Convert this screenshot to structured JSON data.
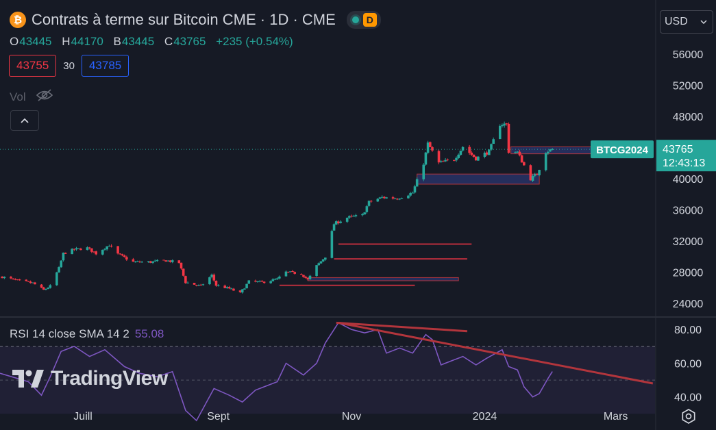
{
  "header": {
    "title": "Contrats à terme sur Bitcoin CME · 1D · CME",
    "badge": "D",
    "icon": "bitcoin-icon",
    "currency": "USD"
  },
  "ohlc": {
    "o_label": "O",
    "o": "43445",
    "h_label": "H",
    "h": "44170",
    "b_label": "B",
    "b": "43445",
    "c_label": "C",
    "c": "43765",
    "change": "+235 (+0.54%)"
  },
  "quote": {
    "bid": "43755",
    "spread": "30",
    "ask": "43785"
  },
  "volume": {
    "label": "Vol",
    "icon": "eye-off-icon"
  },
  "rsi_legend": {
    "text": "RSI 14 close SMA 14 2",
    "value": "55.08"
  },
  "watermark": "TradingView",
  "colors": {
    "background": "#161a25",
    "up": "#26a69a",
    "down": "#f23645",
    "rsi": "#7e57c2",
    "trendline": "#b2353c",
    "zone": "#3848a0"
  },
  "chart_data": [
    {
      "type": "candlestick",
      "symbol_label": "BTCG2024",
      "last_price": "43765",
      "countdown": "12:43:13",
      "y_ticks": [
        "56000",
        "52000",
        "48000",
        "44000",
        "40000",
        "36000",
        "32000",
        "28000",
        "24000"
      ],
      "x_labels": [
        "Juill",
        "Sept",
        "Nov",
        "2024",
        "Mars"
      ],
      "x_label_dates": [
        "2023-07-01",
        "2023-09-01",
        "2023-11-01",
        "2024-01-01",
        "2024-03-01"
      ],
      "ylim": [
        22500,
        57500
      ],
      "xlim": [
        "2023-05-24",
        "2024-03-19"
      ],
      "grid": false,
      "series": [
        {
          "date": "2023-05-25",
          "value": 27400
        },
        {
          "date": "2023-06-01",
          "value": 26900
        },
        {
          "date": "2023-06-08",
          "value": 26600
        },
        {
          "date": "2023-06-13",
          "value": 25700
        },
        {
          "date": "2023-06-16",
          "value": 26200
        },
        {
          "date": "2023-06-20",
          "value": 28500
        },
        {
          "date": "2023-06-22",
          "value": 30400
        },
        {
          "date": "2023-06-27",
          "value": 30900
        },
        {
          "date": "2023-07-03",
          "value": 31100
        },
        {
          "date": "2023-07-07",
          "value": 30400
        },
        {
          "date": "2023-07-13",
          "value": 31500
        },
        {
          "date": "2023-07-17",
          "value": 30300
        },
        {
          "date": "2023-07-24",
          "value": 29300
        },
        {
          "date": "2023-08-01",
          "value": 29300
        },
        {
          "date": "2023-08-08",
          "value": 29500
        },
        {
          "date": "2023-08-14",
          "value": 29200
        },
        {
          "date": "2023-08-17",
          "value": 26700
        },
        {
          "date": "2023-08-24",
          "value": 26200
        },
        {
          "date": "2023-08-29",
          "value": 27600
        },
        {
          "date": "2023-08-31",
          "value": 26300
        },
        {
          "date": "2023-09-06",
          "value": 25900
        },
        {
          "date": "2023-09-11",
          "value": 25300
        },
        {
          "date": "2023-09-15",
          "value": 26800
        },
        {
          "date": "2023-09-21",
          "value": 26700
        },
        {
          "date": "2023-09-28",
          "value": 27100
        },
        {
          "date": "2023-10-02",
          "value": 28000
        },
        {
          "date": "2023-10-09",
          "value": 27800
        },
        {
          "date": "2023-10-12",
          "value": 27000
        },
        {
          "date": "2023-10-16",
          "value": 28800
        },
        {
          "date": "2023-10-20",
          "value": 30000
        },
        {
          "date": "2023-10-24",
          "value": 34200
        },
        {
          "date": "2023-10-30",
          "value": 35000
        },
        {
          "date": "2023-11-06",
          "value": 35300
        },
        {
          "date": "2023-11-09",
          "value": 37000
        },
        {
          "date": "2023-11-15",
          "value": 37600
        },
        {
          "date": "2023-11-22",
          "value": 37500
        },
        {
          "date": "2023-11-29",
          "value": 38200
        },
        {
          "date": "2023-12-04",
          "value": 42000
        },
        {
          "date": "2023-12-06",
          "value": 44500
        },
        {
          "date": "2023-12-11",
          "value": 42000
        },
        {
          "date": "2023-12-18",
          "value": 42500
        },
        {
          "date": "2023-12-22",
          "value": 44100
        },
        {
          "date": "2023-12-28",
          "value": 42600
        },
        {
          "date": "2024-01-03",
          "value": 43500
        },
        {
          "date": "2024-01-08",
          "value": 47000
        },
        {
          "date": "2024-01-11",
          "value": 47000
        },
        {
          "date": "2024-01-12",
          "value": 43500
        },
        {
          "date": "2024-01-16",
          "value": 43400
        },
        {
          "date": "2024-01-22",
          "value": 40000
        },
        {
          "date": "2024-01-25",
          "value": 40600
        },
        {
          "date": "2024-01-29",
          "value": 43500
        },
        {
          "date": "2024-02-01",
          "value": 43765
        }
      ],
      "zones": [
        {
          "date_from": "2024-01-13",
          "date_to": "2024-03-17",
          "y_from": 43200,
          "y_to": 44100
        },
        {
          "date_from": "2023-12-01",
          "date_to": "2024-01-26",
          "y_from": 39300,
          "y_to": 40600
        },
        {
          "date_from": "2023-10-12",
          "date_to": "2023-12-20",
          "y_from": 26900,
          "y_to": 27300
        }
      ],
      "levels": [
        {
          "date_from": "2023-10-26",
          "date_to": "2023-12-26",
          "value": 31600
        },
        {
          "date_from": "2023-10-24",
          "date_to": "2023-12-24",
          "value": 29700
        },
        {
          "date_from": "2023-09-29",
          "date_to": "2023-11-30",
          "value": 26300
        }
      ]
    },
    {
      "type": "line",
      "name": "RSI",
      "y_ticks": [
        "80.00",
        "60.00",
        "40.00"
      ],
      "ylim": [
        35,
        87
      ],
      "bands": [
        70,
        50,
        30
      ],
      "series": [
        {
          "date": "2023-05-24",
          "value": 54
        },
        {
          "date": "2023-06-06",
          "value": 49
        },
        {
          "date": "2023-06-12",
          "value": 41
        },
        {
          "date": "2023-06-16",
          "value": 52
        },
        {
          "date": "2023-06-21",
          "value": 67
        },
        {
          "date": "2023-06-27",
          "value": 70
        },
        {
          "date": "2023-07-04",
          "value": 64
        },
        {
          "date": "2023-07-11",
          "value": 68
        },
        {
          "date": "2023-07-20",
          "value": 58
        },
        {
          "date": "2023-07-27",
          "value": 54
        },
        {
          "date": "2023-08-04",
          "value": 52
        },
        {
          "date": "2023-08-11",
          "value": 55
        },
        {
          "date": "2023-08-17",
          "value": 32
        },
        {
          "date": "2023-08-22",
          "value": 26
        },
        {
          "date": "2023-08-30",
          "value": 45
        },
        {
          "date": "2023-09-06",
          "value": 41
        },
        {
          "date": "2023-09-12",
          "value": 37
        },
        {
          "date": "2023-09-18",
          "value": 44
        },
        {
          "date": "2023-09-28",
          "value": 49
        },
        {
          "date": "2023-10-02",
          "value": 60
        },
        {
          "date": "2023-10-10",
          "value": 53
        },
        {
          "date": "2023-10-16",
          "value": 60
        },
        {
          "date": "2023-10-20",
          "value": 72
        },
        {
          "date": "2023-10-26",
          "value": 84
        },
        {
          "date": "2023-11-01",
          "value": 80
        },
        {
          "date": "2023-11-07",
          "value": 78
        },
        {
          "date": "2023-11-13",
          "value": 80
        },
        {
          "date": "2023-11-17",
          "value": 66
        },
        {
          "date": "2023-11-23",
          "value": 69
        },
        {
          "date": "2023-11-29",
          "value": 66
        },
        {
          "date": "2023-12-05",
          "value": 77
        },
        {
          "date": "2023-12-08",
          "value": 74
        },
        {
          "date": "2023-12-12",
          "value": 59
        },
        {
          "date": "2023-12-18",
          "value": 62
        },
        {
          "date": "2023-12-22",
          "value": 64
        },
        {
          "date": "2023-12-28",
          "value": 59
        },
        {
          "date": "2024-01-02",
          "value": 63
        },
        {
          "date": "2024-01-09",
          "value": 68
        },
        {
          "date": "2024-01-12",
          "value": 58
        },
        {
          "date": "2024-01-16",
          "value": 56
        },
        {
          "date": "2024-01-19",
          "value": 46
        },
        {
          "date": "2024-01-23",
          "value": 40
        },
        {
          "date": "2024-01-26",
          "value": 42
        },
        {
          "date": "2024-01-30",
          "value": 51
        },
        {
          "date": "2024-02-01",
          "value": 55.08
        }
      ],
      "trendlines": [
        {
          "from": {
            "date": "2023-10-25",
            "value": 84
          },
          "to": {
            "date": "2023-12-24",
            "value": 79
          }
        },
        {
          "from": {
            "date": "2023-10-26",
            "value": 84
          },
          "to": {
            "date": "2024-03-18",
            "value": 48
          }
        }
      ]
    }
  ]
}
